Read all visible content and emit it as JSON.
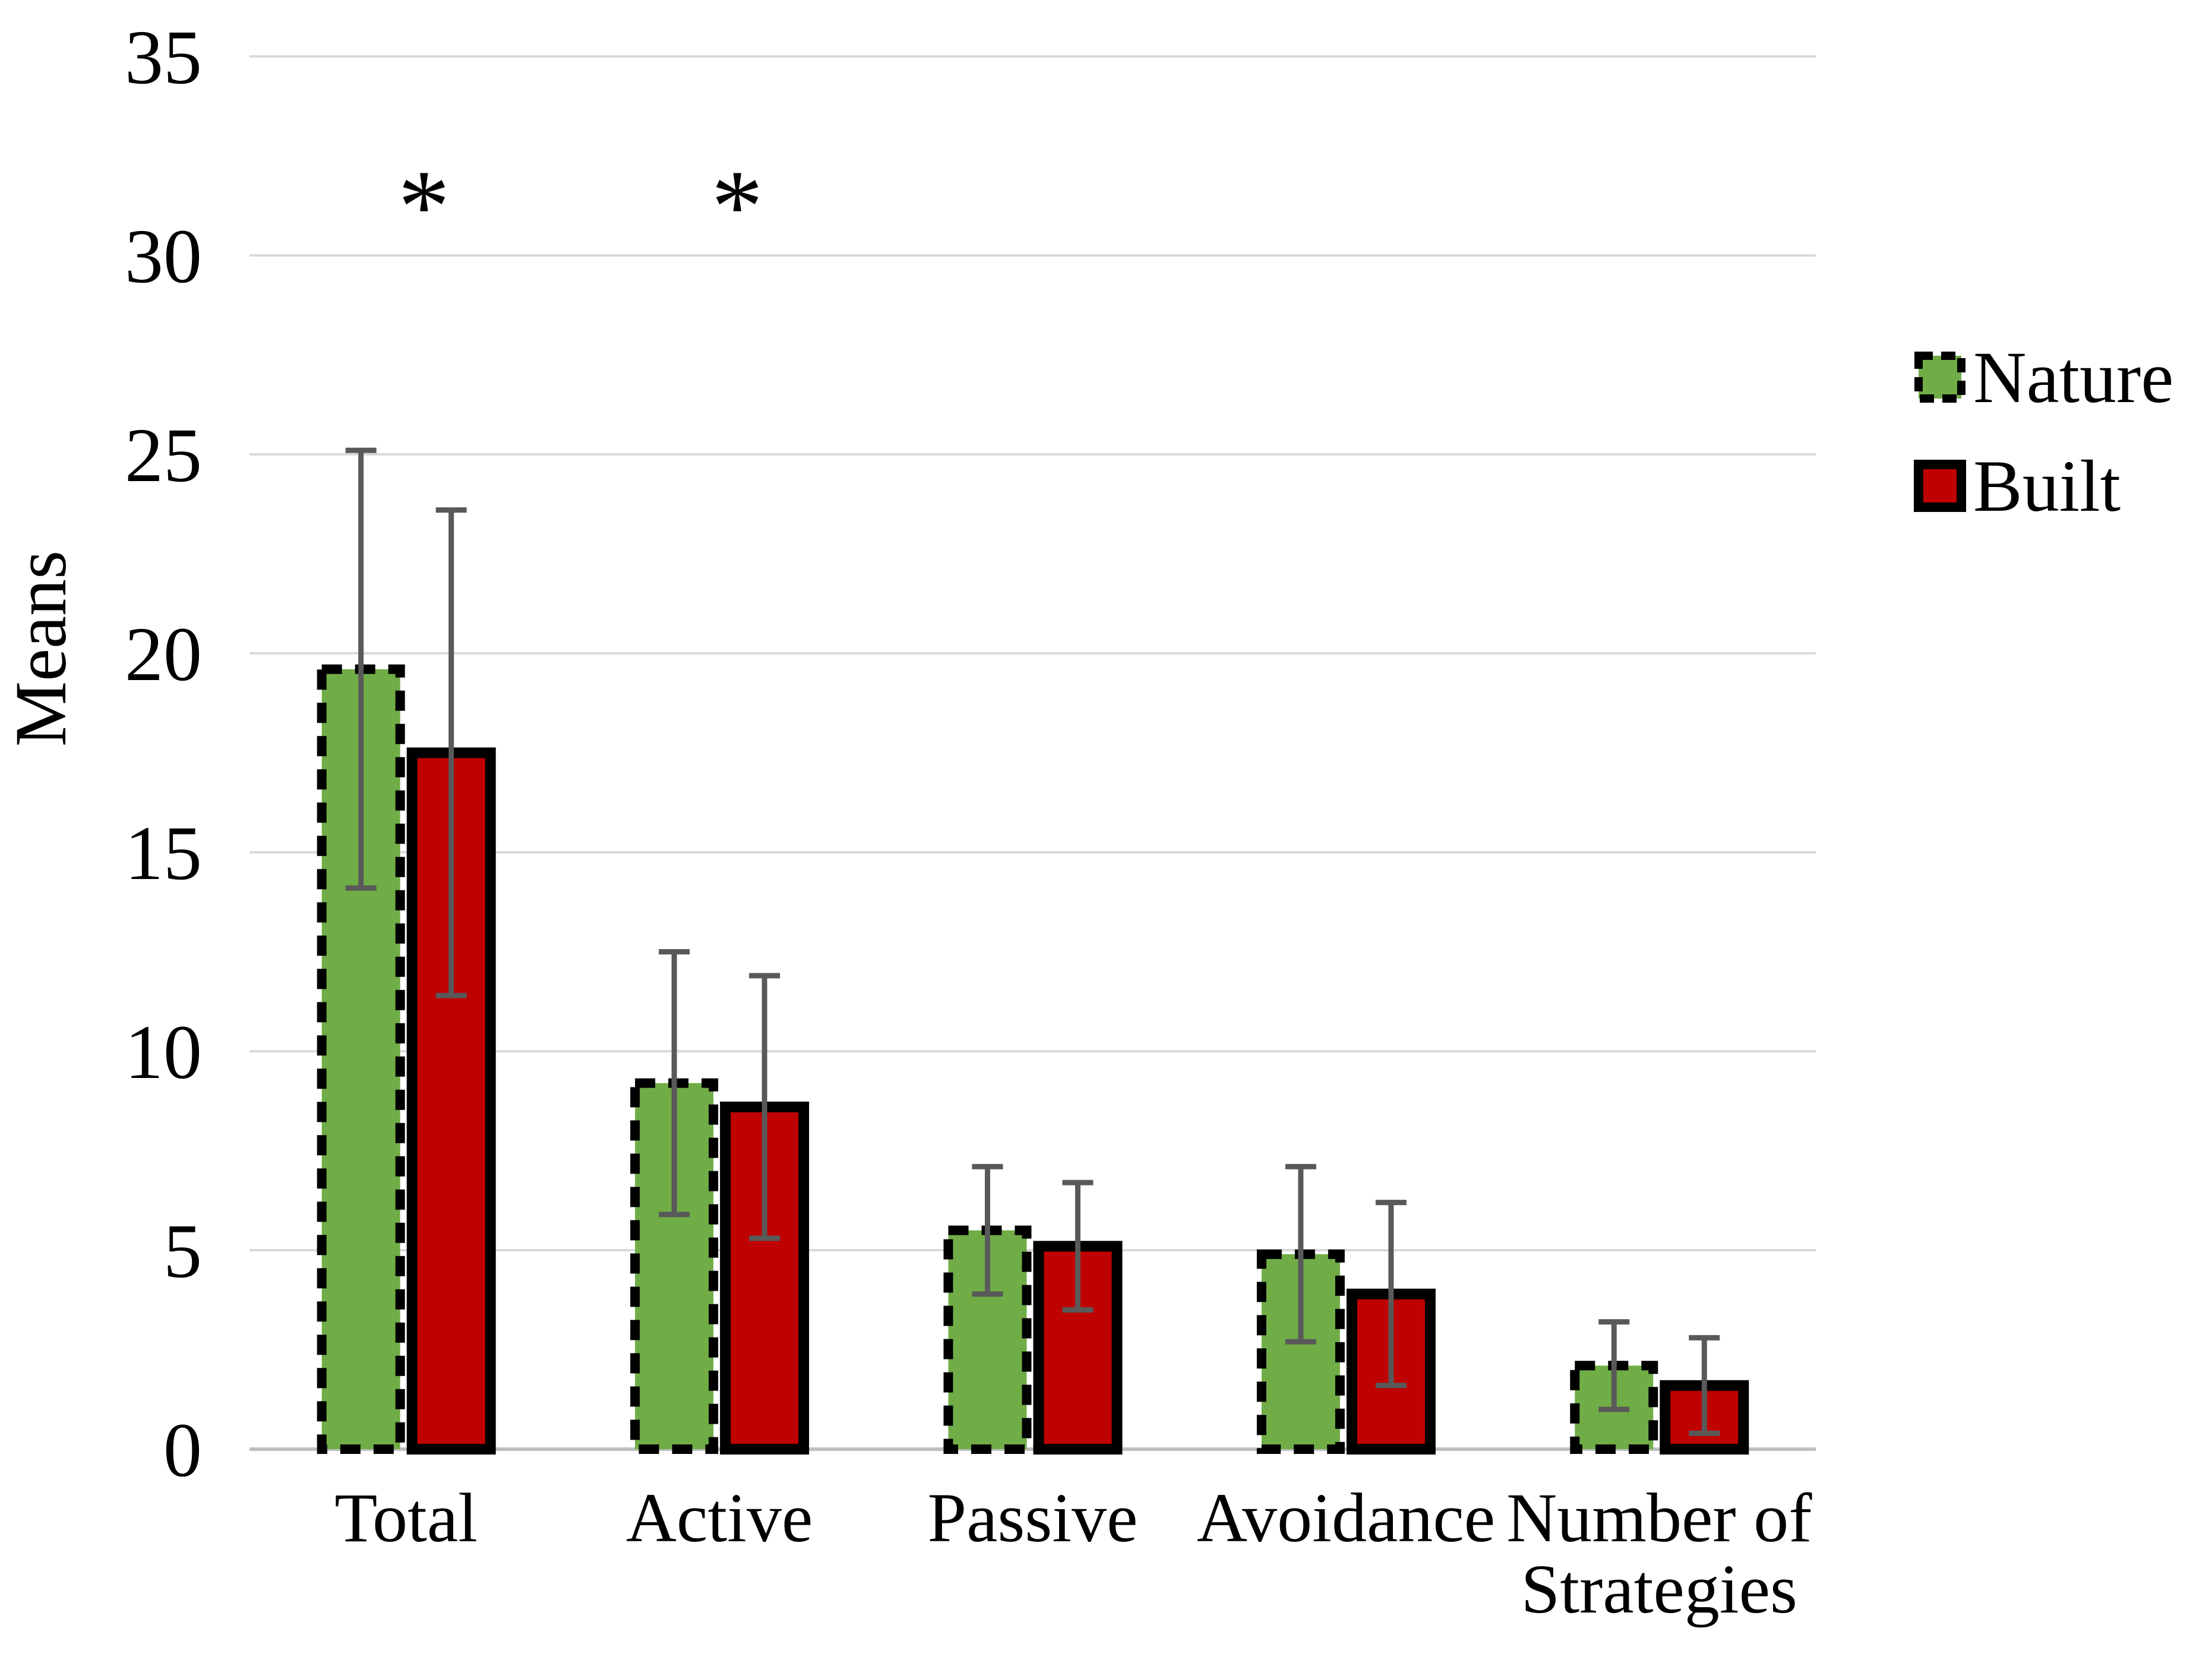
{
  "chart_data": {
    "type": "bar",
    "title": "",
    "xlabel": "",
    "ylabel": "Means",
    "ylim": [
      0,
      35
    ],
    "ytick_step": 5,
    "yticks": [
      0,
      5,
      10,
      15,
      20,
      25,
      30,
      35
    ],
    "grid": true,
    "legend_position": "right",
    "categories": [
      "Total",
      "Active",
      "Passive",
      "Avoidance",
      "Number of Strategies"
    ],
    "category_label_lines": [
      [
        "Total"
      ],
      [
        "Active"
      ],
      [
        "Passive"
      ],
      [
        "Avoidance"
      ],
      [
        "Number of",
        "Strategies"
      ]
    ],
    "series": [
      {
        "name": "Nature",
        "fill_color": "#70AD47",
        "border_color": "#000000",
        "border_style": "dashed",
        "values": [
          19.6,
          9.2,
          5.5,
          4.9,
          2.1
        ],
        "error": [
          5.5,
          3.3,
          1.6,
          2.2,
          1.1
        ]
      },
      {
        "name": "Built",
        "fill_color": "#C00101",
        "border_color": "#000000",
        "border_style": "solid",
        "values": [
          17.5,
          8.6,
          5.1,
          3.9,
          1.6
        ],
        "error": [
          6.1,
          3.3,
          1.6,
          2.3,
          1.2
        ]
      }
    ],
    "significance": {
      "symbol": "*",
      "marked_categories": [
        "Total",
        "Active"
      ],
      "symbol_value_height": 32
    },
    "colors": {
      "gridline": "#D9D9D9",
      "axis_line": "#BFBFBF",
      "error_bar": "#595959",
      "text": "#000000",
      "background": "#FFFFFF"
    }
  }
}
